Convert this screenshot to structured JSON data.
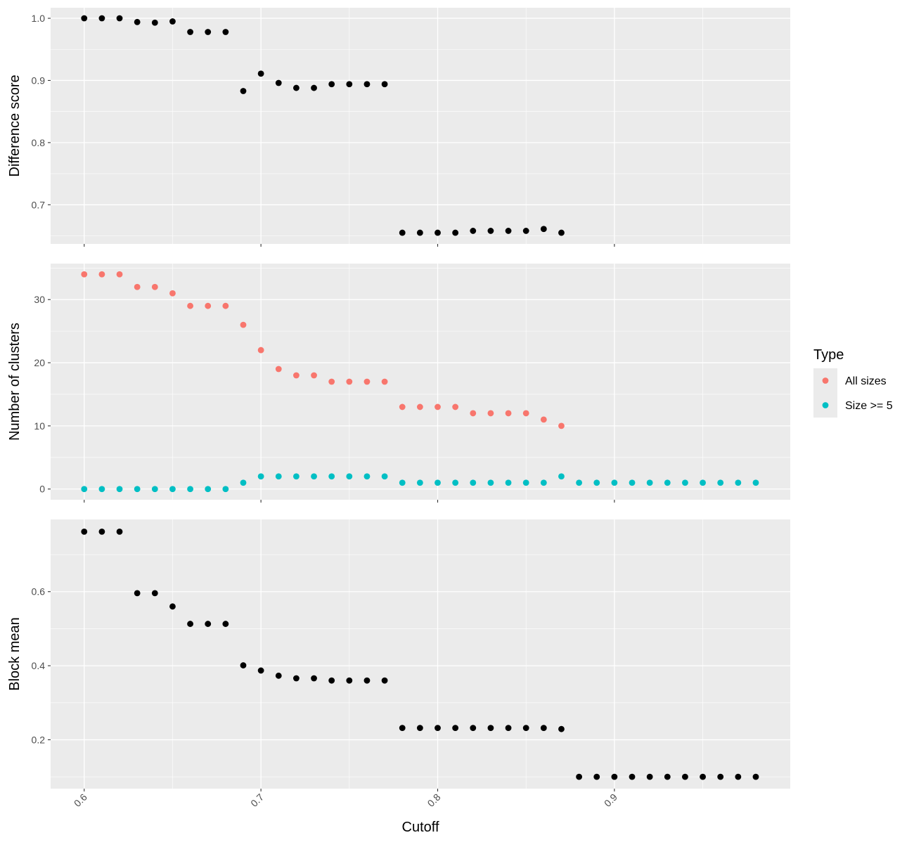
{
  "chart_data": {
    "type": "scatter",
    "x": [
      0.6,
      0.61,
      0.62,
      0.63,
      0.64,
      0.65,
      0.66,
      0.67,
      0.68,
      0.69,
      0.7,
      0.71,
      0.72,
      0.73,
      0.74,
      0.75,
      0.76,
      0.77,
      0.78,
      0.79,
      0.8,
      0.81,
      0.82,
      0.83,
      0.84,
      0.85,
      0.86,
      0.87,
      0.88,
      0.89,
      0.9,
      0.91,
      0.92,
      0.93,
      0.94,
      0.95,
      0.96,
      0.97,
      0.98
    ],
    "xlabel": "Cutoff",
    "xticks": [
      "0.6",
      "0.7",
      "0.8",
      "0.9"
    ],
    "xlim": [
      0.581,
      0.9995
    ],
    "panels": [
      {
        "ylabel": "Difference score",
        "ylim": [
          0.637,
          1.017
        ],
        "yticks": [
          "0.7",
          "0.8",
          "0.9",
          "1.0"
        ],
        "series": [
          {
            "color": "#000000",
            "values": [
              1.0,
              1.0,
              1.0,
              0.994,
              0.993,
              0.995,
              0.978,
              0.978,
              0.978,
              0.883,
              0.911,
              0.896,
              0.888,
              0.888,
              0.894,
              0.894,
              0.894,
              0.894,
              0.655,
              0.655,
              0.655,
              0.655,
              0.658,
              0.658,
              0.658,
              0.658,
              0.661,
              0.655,
              null,
              null,
              null,
              null,
              null,
              null,
              null,
              null,
              null,
              null,
              null
            ]
          }
        ]
      },
      {
        "ylabel": "Number of clusters",
        "ylim": [
          -1.7,
          35.7
        ],
        "yticks": [
          "0",
          "10",
          "20",
          "30"
        ],
        "series": [
          {
            "name": "All sizes",
            "color": "#F8766D",
            "values": [
              34,
              34,
              34,
              32,
              32,
              31,
              29,
              29,
              29,
              26,
              22,
              19,
              18,
              18,
              17,
              17,
              17,
              17,
              13,
              13,
              13,
              13,
              12,
              12,
              12,
              12,
              11,
              10,
              null,
              null,
              null,
              null,
              null,
              null,
              null,
              null,
              null,
              null,
              null
            ]
          },
          {
            "name": "Size >= 5",
            "color": "#00BFC4",
            "values": [
              0,
              0,
              0,
              0,
              0,
              0,
              0,
              0,
              0,
              1,
              2,
              2,
              2,
              2,
              2,
              2,
              2,
              2,
              1,
              1,
              1,
              1,
              1,
              1,
              1,
              1,
              1,
              2,
              1,
              1,
              1,
              1,
              1,
              1,
              1,
              1,
              1,
              1,
              1
            ]
          }
        ]
      },
      {
        "ylabel": "Block mean",
        "ylim": [
          0.068,
          0.795
        ],
        "yticks": [
          "0.2",
          "0.4",
          "0.6"
        ],
        "series": [
          {
            "color": "#000000",
            "values": [
              0.762,
              0.762,
              0.762,
              0.596,
              0.596,
              0.56,
              0.513,
              0.513,
              0.513,
              0.401,
              0.387,
              0.373,
              0.366,
              0.366,
              0.36,
              0.36,
              0.36,
              0.36,
              0.232,
              0.232,
              0.232,
              0.232,
              0.232,
              0.232,
              0.232,
              0.232,
              0.232,
              0.229,
              0.1,
              0.1,
              0.1,
              0.1,
              0.1,
              0.1,
              0.1,
              0.1,
              0.1,
              0.1,
              0.1
            ]
          }
        ]
      }
    ],
    "legend": {
      "title": "Type",
      "position": "right",
      "items": [
        {
          "label": "All sizes",
          "color": "#F8766D"
        },
        {
          "label": "Size >= 5",
          "color": "#00BFC4"
        }
      ]
    },
    "grid": true,
    "panel_background": "#EBEBEB",
    "grid_color": "#FFFFFF"
  }
}
